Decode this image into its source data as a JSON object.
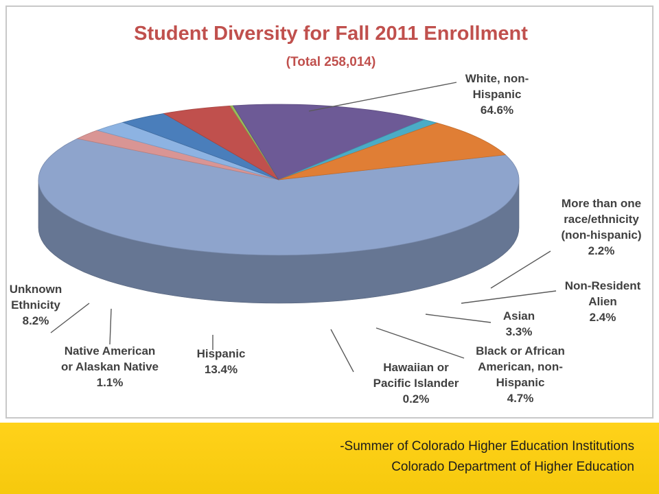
{
  "chart_data": {
    "type": "pie",
    "title": "Student Diversity for Fall 2011 Enrollment",
    "subtitle": "(Total 258,014)",
    "slices": [
      {
        "label": "White, non-Hispanic",
        "label_lines": [
          "White, non-",
          "Hispanic",
          "64.6%"
        ],
        "value": 64.6,
        "color": "#8ea4cc"
      },
      {
        "label": "More than one race/ethnicity (non-hispanic)",
        "label_lines": [
          "More than one",
          "race/ethnicity",
          "(non-hispanic)",
          "2.2%"
        ],
        "value": 2.2,
        "color": "#d99594"
      },
      {
        "label": "Non-Resident Alien",
        "label_lines": [
          "Non-Resident",
          "Alien",
          "2.4%"
        ],
        "value": 2.4,
        "color": "#8db3e2"
      },
      {
        "label": "Asian",
        "label_lines": [
          "Asian",
          "3.3%"
        ],
        "value": 3.3,
        "color": "#4a7ebb"
      },
      {
        "label": "Black or African American, non-Hispanic",
        "label_lines": [
          "Black or African",
          "American, non-",
          "Hispanic",
          "4.7%"
        ],
        "value": 4.7,
        "color": "#c0504d"
      },
      {
        "label": "Hawaiian or Pacific Islander",
        "label_lines": [
          "Hawaiian or",
          "Pacific Islander",
          "0.2%"
        ],
        "value": 0.2,
        "color": "#9bbb59"
      },
      {
        "label": "Hispanic",
        "label_lines": [
          "Hispanic",
          "13.4%"
        ],
        "value": 13.4,
        "color": "#6d5a96"
      },
      {
        "label": "Native American or Alaskan Native",
        "label_lines": [
          "Native American",
          "or Alaskan Native",
          "1.1%"
        ],
        "value": 1.1,
        "color": "#4bacc6"
      },
      {
        "label": "Unknown Ethnicity",
        "label_lines": [
          "Unknown",
          "Ethnicity",
          "8.2%"
        ],
        "value": 8.2,
        "color": "#e07e35"
      }
    ]
  },
  "footer": {
    "line1": "-Summer of Colorado Higher Education Institutions",
    "line2": "Colorado Department of Higher Education"
  }
}
